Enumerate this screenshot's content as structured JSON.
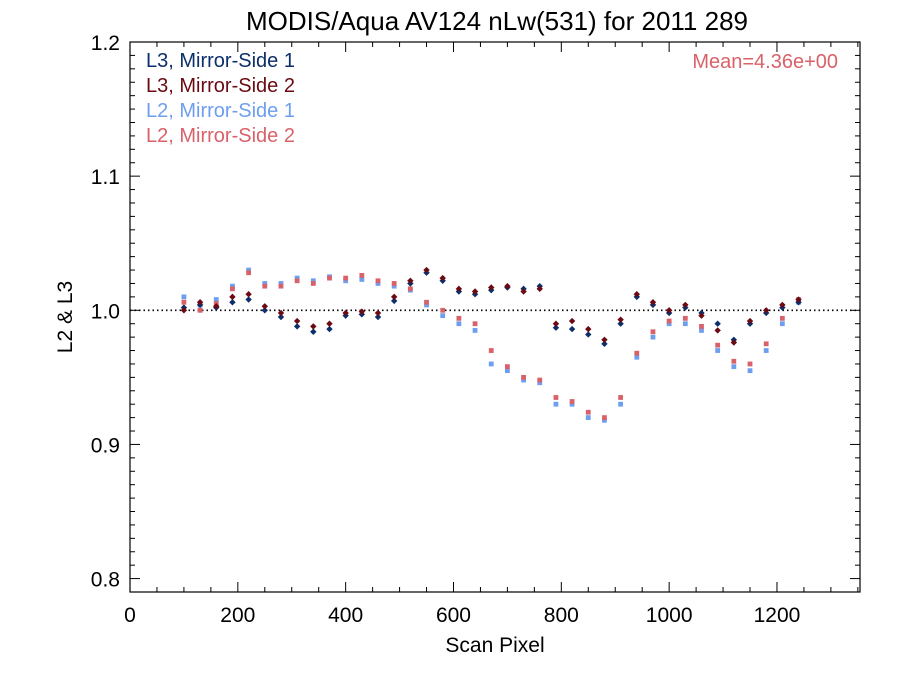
{
  "chart_data": {
    "type": "scatter",
    "title": "MODIS/Aqua AV124 nLw(531) for 2011 289",
    "xlabel": "Scan Pixel",
    "ylabel": "L2 & L3",
    "xlim": [
      0,
      1354
    ],
    "ylim": [
      0.79,
      1.2
    ],
    "xticks": [
      0,
      200,
      400,
      600,
      800,
      1000,
      1200
    ],
    "yticks": [
      0.8,
      0.9,
      1.0,
      1.1,
      1.2
    ],
    "xtick_labels": [
      "0",
      "200",
      "400",
      "600",
      "800",
      "1000",
      "1200"
    ],
    "ytick_labels": [
      "0.8",
      "0.9",
      "1.0",
      "1.1",
      "1.2"
    ],
    "reference_line": 1.0,
    "reference_line_style": "dotted",
    "annotation": "Mean=4.36e+00",
    "annotation_color": "#d9626a",
    "legend_position": "top-left",
    "series": [
      {
        "name": "L3, Mirror-Side 1",
        "color": "#0b2f6b",
        "marker": "diamond",
        "x": [
          100,
          130,
          160,
          190,
          220,
          250,
          280,
          310,
          340,
          370,
          400,
          430,
          460,
          490,
          520,
          550,
          580,
          610,
          640,
          670,
          700,
          730,
          760,
          790,
          820,
          850,
          880,
          910,
          940,
          970,
          1000,
          1030,
          1060,
          1090,
          1120,
          1150,
          1180,
          1210,
          1240
        ],
        "y": [
          1.002,
          1.004,
          1.002,
          1.006,
          1.008,
          1.0,
          0.995,
          0.988,
          0.984,
          0.986,
          0.996,
          0.997,
          0.995,
          1.007,
          1.02,
          1.028,
          1.022,
          1.014,
          1.012,
          1.015,
          1.017,
          1.016,
          1.018,
          0.987,
          0.986,
          0.982,
          0.975,
          0.99,
          1.01,
          1.004,
          0.998,
          1.002,
          0.998,
          0.99,
          0.978,
          0.99,
          0.998,
          1.002,
          1.006
        ]
      },
      {
        "name": "L3, Mirror-Side 2",
        "color": "#6b0a12",
        "marker": "diamond",
        "x": [
          100,
          130,
          160,
          190,
          220,
          250,
          280,
          310,
          340,
          370,
          400,
          430,
          460,
          490,
          520,
          550,
          580,
          610,
          640,
          670,
          700,
          730,
          760,
          790,
          820,
          850,
          880,
          910,
          940,
          970,
          1000,
          1030,
          1060,
          1090,
          1120,
          1150,
          1180,
          1210,
          1240
        ],
        "y": [
          1.0,
          1.006,
          1.003,
          1.01,
          1.012,
          1.003,
          0.998,
          0.992,
          0.988,
          0.99,
          0.998,
          0.999,
          0.998,
          1.01,
          1.022,
          1.03,
          1.024,
          1.016,
          1.014,
          1.017,
          1.018,
          1.014,
          1.016,
          0.99,
          0.992,
          0.986,
          0.978,
          0.993,
          1.012,
          1.006,
          1.0,
          1.004,
          0.996,
          0.985,
          0.976,
          0.992,
          1.0,
          1.004,
          1.008
        ]
      },
      {
        "name": "L2, Mirror-Side 1",
        "color": "#6e9fef",
        "marker": "square",
        "x": [
          100,
          130,
          160,
          190,
          220,
          250,
          280,
          310,
          340,
          370,
          400,
          430,
          460,
          490,
          520,
          550,
          580,
          610,
          640,
          670,
          700,
          730,
          760,
          790,
          820,
          850,
          880,
          910,
          940,
          970,
          1000,
          1030,
          1060,
          1090,
          1120,
          1150,
          1180,
          1210,
          1240
        ],
        "y": [
          1.01,
          1.004,
          1.008,
          1.018,
          1.03,
          1.02,
          1.02,
          1.024,
          1.022,
          1.025,
          1.022,
          1.023,
          1.02,
          1.018,
          1.015,
          1.004,
          0.996,
          0.99,
          0.985,
          0.96,
          0.955,
          0.948,
          0.946,
          0.93,
          0.93,
          0.92,
          0.918,
          0.93,
          0.965,
          0.98,
          0.99,
          0.99,
          0.985,
          0.97,
          0.958,
          0.955,
          0.97,
          0.99,
          1.006
        ]
      },
      {
        "name": "L2, Mirror-Side 2",
        "color": "#d9626a",
        "marker": "square",
        "x": [
          100,
          130,
          160,
          190,
          220,
          250,
          280,
          310,
          340,
          370,
          400,
          430,
          460,
          490,
          520,
          550,
          580,
          610,
          640,
          670,
          700,
          730,
          760,
          790,
          820,
          850,
          880,
          910,
          940,
          970,
          1000,
          1030,
          1060,
          1090,
          1120,
          1150,
          1180,
          1210,
          1240
        ],
        "y": [
          1.006,
          1.0,
          1.005,
          1.016,
          1.028,
          1.018,
          1.018,
          1.022,
          1.02,
          1.024,
          1.024,
          1.026,
          1.022,
          1.02,
          1.016,
          1.006,
          1.0,
          0.994,
          0.99,
          0.97,
          0.958,
          0.95,
          0.948,
          0.935,
          0.932,
          0.924,
          0.92,
          0.935,
          0.968,
          0.984,
          0.992,
          0.994,
          0.988,
          0.974,
          0.962,
          0.96,
          0.975,
          0.994,
          1.008
        ]
      }
    ]
  }
}
